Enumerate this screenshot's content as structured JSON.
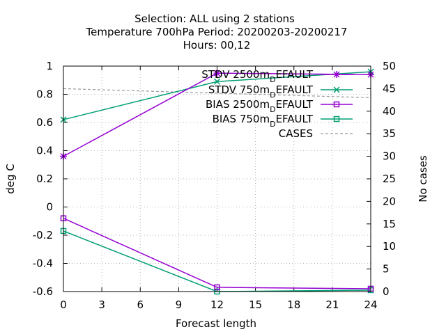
{
  "chart_data": {
    "type": "line",
    "title_lines": [
      "Selection: ALL using     2 stations",
      "Temperature 700hPa   Period: 20200203-20200217",
      "Hours:  00,12"
    ],
    "xlabel": "Forecast length",
    "ylabel": "deg C",
    "y2label": "No cases",
    "xlim": [
      0,
      24
    ],
    "ylim": [
      -0.6,
      1
    ],
    "y2lim": [
      0,
      50
    ],
    "xticks": [
      "0",
      "3",
      "6",
      "9",
      "12",
      "15",
      "18",
      "21",
      "24"
    ],
    "yticks": [
      "-0.6",
      "-0.4",
      "-0.2",
      "0",
      "0.2",
      "0.4",
      "0.6",
      "0.8",
      "1"
    ],
    "y2ticks": [
      "0",
      "5",
      "10",
      "15",
      "20",
      "25",
      "30",
      "35",
      "40",
      "45",
      "50"
    ],
    "grid": true,
    "legend_position": "top-right",
    "series": [
      {
        "name": "STDV 2500m",
        "name_sub": "D",
        "name_tail": "EFAULT",
        "color": "#9400d3",
        "marker": "star",
        "axis": "y",
        "x": [
          0,
          12,
          24
        ],
        "values": [
          0.36,
          0.95,
          0.94
        ]
      },
      {
        "name": "STDV 750m",
        "name_sub": "D",
        "name_tail": "EFAULT",
        "color": "#009e73",
        "marker": "x",
        "axis": "y",
        "x": [
          0,
          12,
          24
        ],
        "values": [
          0.62,
          0.89,
          0.96
        ]
      },
      {
        "name": "BIAS 2500m",
        "name_sub": "D",
        "name_tail": "EFAULT",
        "color": "#9400d3",
        "marker": "square",
        "axis": "y",
        "x": [
          0,
          12,
          24
        ],
        "values": [
          -0.08,
          -0.57,
          -0.58
        ]
      },
      {
        "name": "BIAS 750m",
        "name_sub": "D",
        "name_tail": "EFAULT",
        "color": "#009e73",
        "marker": "square",
        "axis": "y",
        "x": [
          0,
          12,
          24
        ],
        "values": [
          -0.17,
          -0.6,
          -0.59
        ]
      },
      {
        "name": "CASES",
        "name_sub": "",
        "name_tail": "",
        "color": "#999999",
        "marker": "none",
        "dashed": true,
        "axis": "y2",
        "x": [
          0,
          12,
          24
        ],
        "values": [
          45,
          44,
          43
        ]
      }
    ]
  }
}
